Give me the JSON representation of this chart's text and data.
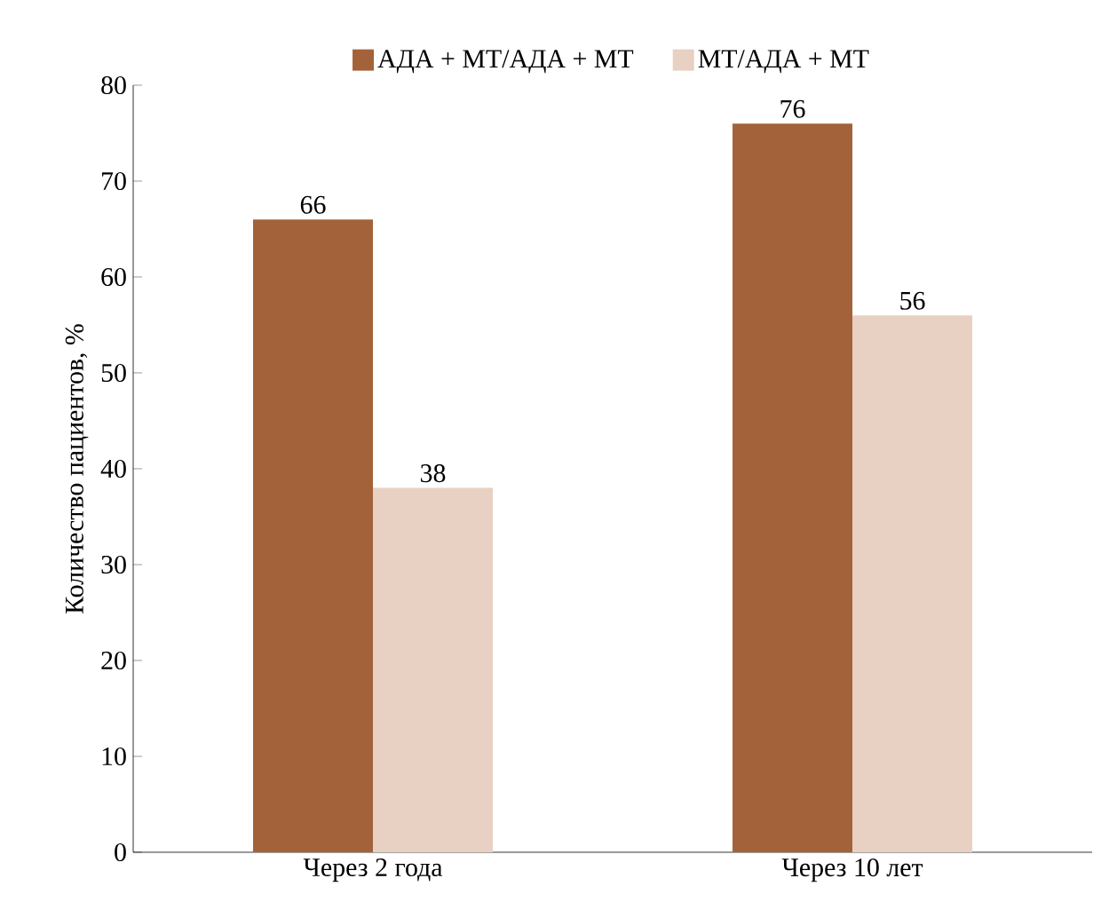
{
  "chart_data": {
    "type": "bar",
    "ylabel": "Количество пациентов, %",
    "categories": [
      "Через 2 года",
      "Через 10 лет"
    ],
    "series": [
      {
        "name": "АДА + МТ/АДА + МТ",
        "color": "#a3623a",
        "values": [
          66,
          76
        ]
      },
      {
        "name": "МТ/АДА + МТ",
        "color": "#e8d1c2",
        "values": [
          38,
          56
        ]
      }
    ],
    "ylim": [
      0,
      80
    ],
    "yticks": [
      0,
      10,
      20,
      30,
      40,
      50,
      60,
      70,
      80
    ],
    "data_labels": true,
    "legend": "top",
    "grid": false
  }
}
